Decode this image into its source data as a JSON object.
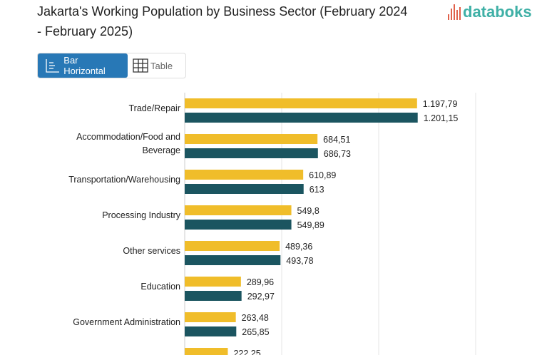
{
  "title": "Jakarta's Working Population by Business Sector (February 2024 - February 2025)",
  "logo": "databoks",
  "toggle": {
    "bar_label": "Bar Horizontal",
    "table_label": "Table",
    "active": "Bar Horizontal"
  },
  "colors": {
    "series1": "#f0bd2a",
    "series2": "#1b5560",
    "active_button": "#2878b6"
  },
  "chart_data": {
    "type": "bar",
    "orientation": "horizontal",
    "grid": true,
    "xlim": [
      0,
      1500
    ],
    "categories": [
      "Trade/Repair",
      "Accommodation/Food and Beverage",
      "Transportation/Warehousing",
      "Processing Industry",
      "Other services",
      "Education",
      "Government Administration",
      ""
    ],
    "series": [
      {
        "values": [
          1197.79,
          684.51,
          610.89,
          549.8,
          489.36,
          289.96,
          263.48,
          222.25
        ],
        "labels": [
          "1.197,79",
          "684,51",
          "610,89",
          "549,8",
          "489,36",
          "289,96",
          "263,48",
          "222,25"
        ]
      },
      {
        "values": [
          1201.15,
          686.73,
          613,
          549.89,
          493.78,
          292.97,
          265.85,
          null
        ],
        "labels": [
          "1.201,15",
          "686,73",
          "613",
          "549,89",
          "493,78",
          "292,97",
          "265,85",
          ""
        ]
      }
    ]
  }
}
